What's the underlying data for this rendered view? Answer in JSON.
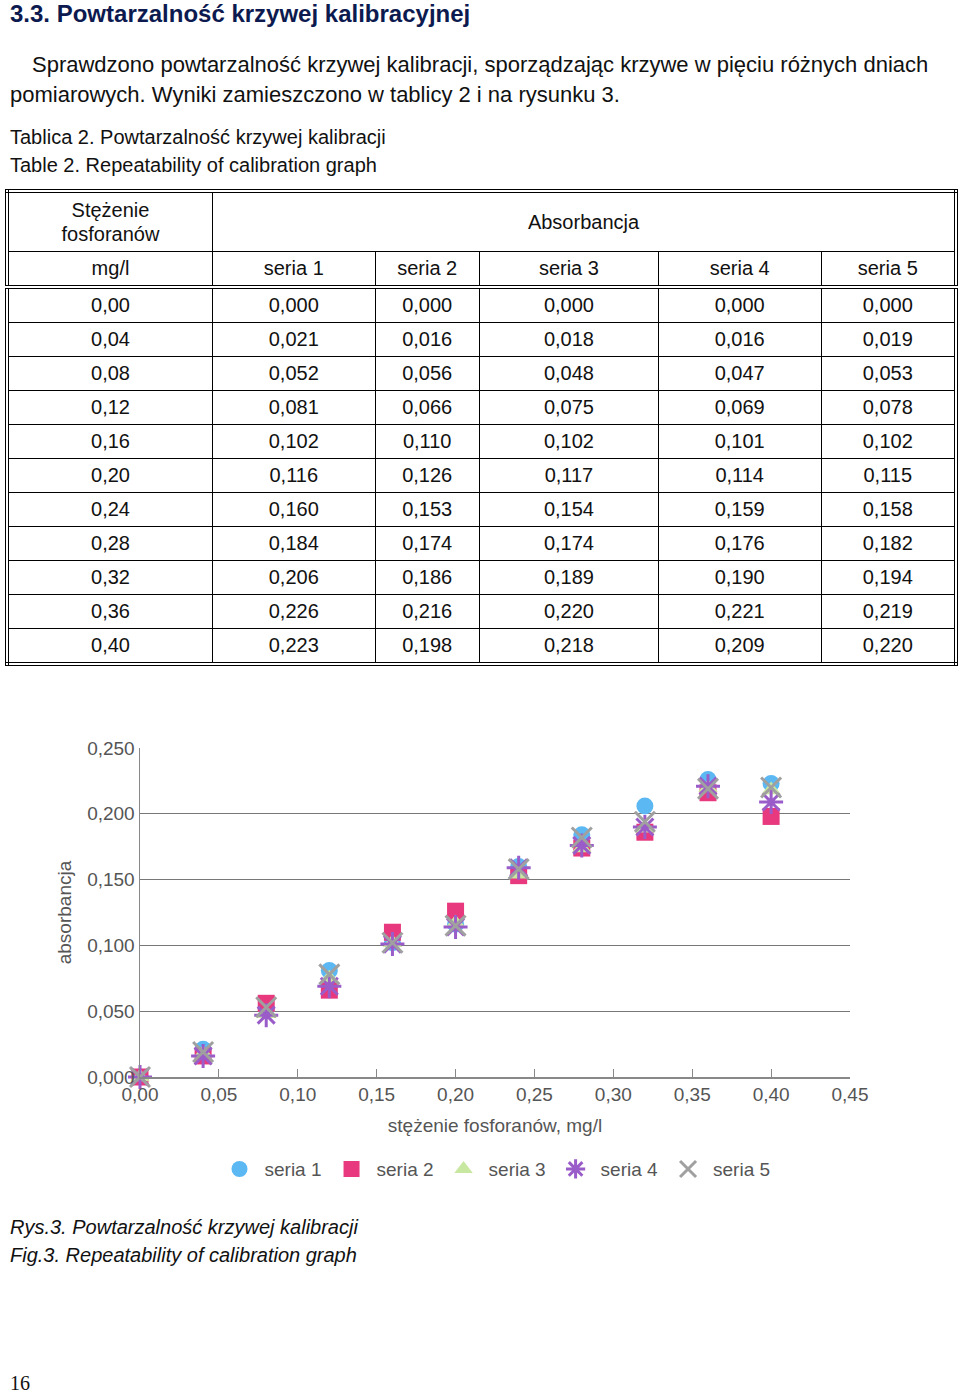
{
  "heading": "3.3. Powtarzalność krzywej kalibracyjnej",
  "paragraph": "Sprawdzono powtarzalność krzywej kalibracji, sporządzając krzywe w pięciu różnych dniach pomiarowych. Wyniki zamieszczono w tablicy 2 i na rysunku 3.",
  "table_captions": [
    "Tablica 2. Powtarzalność krzywej kalibracji",
    "Table 2. Repeatability of calibration graph"
  ],
  "table": {
    "header": [
      [
        "Stężenie fosforanów",
        "Absorbancja"
      ],
      [
        "mg/l",
        "seria 1",
        "seria 2",
        "seria 3",
        "seria 4",
        "seria 5"
      ]
    ],
    "rows": [
      [
        "0,00",
        "0,000",
        "0,000",
        "0,000",
        "0,000",
        "0,000"
      ],
      [
        "0,04",
        "0,021",
        "0,016",
        "0,018",
        "0,016",
        "0,019"
      ],
      [
        "0,08",
        "0,052",
        "0,056",
        "0,048",
        "0,047",
        "0,053"
      ],
      [
        "0,12",
        "0,081",
        "0,066",
        "0,075",
        "0,069",
        "0,078"
      ],
      [
        "0,16",
        "0,102",
        "0,110",
        "0,102",
        "0,101",
        "0,102"
      ],
      [
        "0,20",
        "0,116",
        "0,126",
        "0,117",
        "0,114",
        "0,115"
      ],
      [
        "0,24",
        "0,160",
        "0,153",
        "0,154",
        "0,159",
        "0,158"
      ],
      [
        "0,28",
        "0,184",
        "0,174",
        "0,174",
        "0,176",
        "0,182"
      ],
      [
        "0,32",
        "0,206",
        "0,186",
        "0,189",
        "0,190",
        "0,194"
      ],
      [
        "0,36",
        "0,226",
        "0,216",
        "0,220",
        "0,221",
        "0,219"
      ],
      [
        "0,40",
        "0,223",
        "0,198",
        "0,218",
        "0,209",
        "0,220"
      ]
    ]
  },
  "chart_data": {
    "type": "scatter",
    "xlabel": "stężenie fosforanów, mg/l",
    "ylabel": "absorbancja",
    "x": [
      0,
      0.04,
      0.08,
      0.12,
      0.16,
      0.2,
      0.24,
      0.28,
      0.32,
      0.36,
      0.4
    ],
    "series": [
      {
        "name": "seria 1",
        "color": "#5bb8f2",
        "marker": "circle",
        "values": [
          0,
          0.021,
          0.052,
          0.081,
          0.102,
          0.116,
          0.16,
          0.184,
          0.206,
          0.226,
          0.223
        ]
      },
      {
        "name": "seria 2",
        "color": "#e8387e",
        "marker": "square",
        "values": [
          0,
          0.016,
          0.056,
          0.066,
          0.11,
          0.126,
          0.153,
          0.174,
          0.186,
          0.216,
          0.198
        ]
      },
      {
        "name": "seria 3",
        "color": "#c8e8a2",
        "marker": "triangle",
        "values": [
          0,
          0.018,
          0.048,
          0.075,
          0.102,
          0.117,
          0.154,
          0.174,
          0.189,
          0.22,
          0.218
        ]
      },
      {
        "name": "seria 4",
        "color": "#9a5cc8",
        "marker": "asterisk",
        "values": [
          0,
          0.016,
          0.047,
          0.069,
          0.101,
          0.114,
          0.159,
          0.176,
          0.19,
          0.221,
          0.209
        ]
      },
      {
        "name": "seria 5",
        "color": "#a0a0a0",
        "marker": "x",
        "values": [
          0,
          0.019,
          0.053,
          0.078,
          0.102,
          0.115,
          0.158,
          0.182,
          0.194,
          0.219,
          0.22
        ]
      }
    ],
    "xlim": [
      0,
      0.45
    ],
    "xticks": [
      {
        "value": 0,
        "label": "0,00"
      },
      {
        "value": 0.05,
        "label": "0,05"
      },
      {
        "value": 0.1,
        "label": "0,10"
      },
      {
        "value": 0.15,
        "label": "0,15"
      },
      {
        "value": 0.2,
        "label": "0,20"
      },
      {
        "value": 0.25,
        "label": "0,25"
      },
      {
        "value": 0.3,
        "label": "0,30"
      },
      {
        "value": 0.35,
        "label": "0,35"
      },
      {
        "value": 0.4,
        "label": "0,40"
      },
      {
        "value": 0.45,
        "label": "0,45"
      }
    ],
    "ylim": [
      0,
      0.25
    ],
    "yticks": [
      {
        "value": 0,
        "label": "0,000"
      },
      {
        "value": 0.05,
        "label": "0,050"
      },
      {
        "value": 0.1,
        "label": "0,100"
      },
      {
        "value": 0.15,
        "label": "0,150"
      },
      {
        "value": 0.2,
        "label": "0,200"
      },
      {
        "value": 0.25,
        "label": "0,250"
      }
    ],
    "grid": true,
    "legend": "bottom"
  },
  "figure_captions": [
    "Rys.3. Powtarzalność krzywej kalibracji",
    "Fig.3. Repeatability of calibration graph"
  ],
  "page_number": "16"
}
